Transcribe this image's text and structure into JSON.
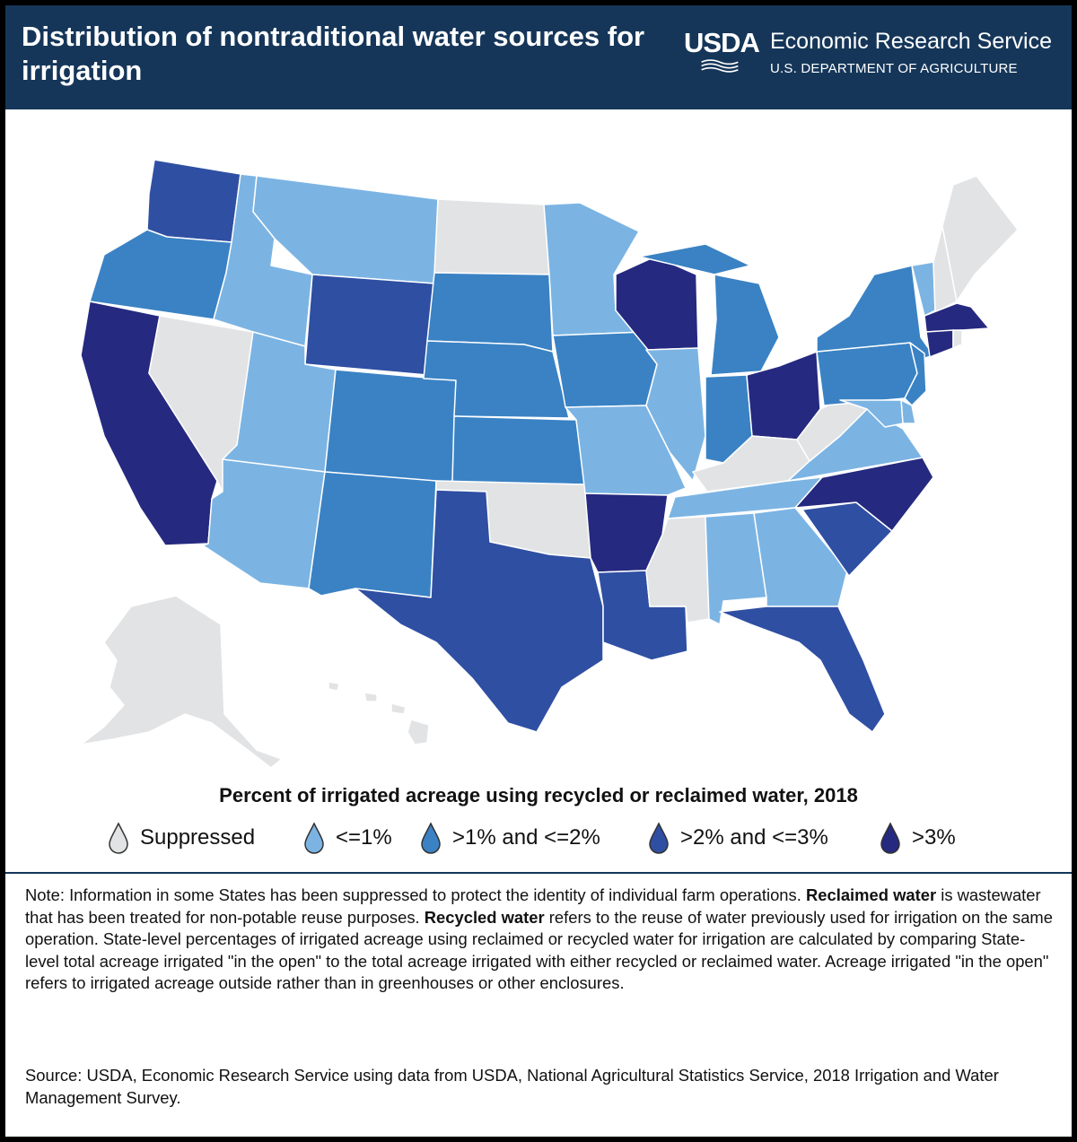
{
  "header": {
    "title": "Distribution of nontraditional water sources for irrigation",
    "logo_text": "USDA",
    "agency": "Economic Research Service",
    "department": "U.S. DEPARTMENT OF AGRICULTURE"
  },
  "colors": {
    "header_bg": "#153659",
    "suppressed": "#e2e3e4",
    "le1": "#7bb4e3",
    "gt1_le2": "#3a82c4",
    "gt2_le3": "#2f4fa3",
    "gt3": "#25297f"
  },
  "map": {
    "legend_title": "Percent of irrigated acreage using recycled or reclaimed water, 2018",
    "legend": [
      {
        "label": "Suppressed",
        "color": "#e2e3e4"
      },
      {
        "label": "<=1%",
        "color": "#7bb4e3"
      },
      {
        "label": ">1% and <=2%",
        "color": "#3a82c4"
      },
      {
        "label": ">2% and <=3%",
        "color": "#2f4fa3"
      },
      {
        "label": ">3%",
        "color": "#25297f"
      }
    ],
    "states": {
      "WA": "gt2_le3",
      "OR": "gt1_le2",
      "CA": "gt3",
      "NV": "suppressed",
      "ID": "le1",
      "MT": "le1",
      "WY": "gt2_le3",
      "UT": "le1",
      "AZ": "le1",
      "CO": "gt1_le2",
      "NM": "gt1_le2",
      "ND": "suppressed",
      "SD": "gt1_le2",
      "NE": "gt1_le2",
      "KS": "gt1_le2",
      "OK": "suppressed",
      "TX": "gt2_le3",
      "MN": "le1",
      "IA": "gt1_le2",
      "MO": "le1",
      "AR": "gt3",
      "LA": "gt2_le3",
      "WI": "gt3",
      "IL": "le1",
      "MI": "gt1_le2",
      "IN": "gt1_le2",
      "OH": "gt3",
      "KY": "suppressed",
      "TN": "le1",
      "MS": "suppressed",
      "AL": "le1",
      "GA": "le1",
      "FL": "gt2_le3",
      "SC": "gt2_le3",
      "NC": "gt3",
      "VA": "le1",
      "WV": "suppressed",
      "PA": "gt1_le2",
      "NY": "gt1_le2",
      "NJ": "gt1_le2",
      "DE": "le1",
      "MD": "le1",
      "VT": "le1",
      "NH": "suppressed",
      "ME": "suppressed",
      "MA": "gt3",
      "CT": "gt3",
      "RI": "suppressed",
      "AK": "suppressed",
      "HI": "suppressed"
    }
  },
  "note": {
    "prefix": "Note: Information in some States has been suppressed to protect the identity of individual farm operations. ",
    "term1": "Reclaimed water",
    "def1": " is wastewater that has been treated for non-potable reuse purposes. ",
    "term2": "Recycled water",
    "def2": " refers to the reuse of water previously used for irrigation on the same operation. State-level percentages of irrigated acreage using reclaimed or recycled water for irrigation are calculated by comparing State-level total acreage irrigated \"in the open\" to the total acreage irrigated with either recycled or reclaimed water. Acreage irrigated \"in the open\" refers to irrigated acreage outside rather than in greenhouses or other enclosures."
  },
  "source": "Source: USDA, Economic Research Service using data from USDA, National Agricultural Statistics Service, 2018 Irrigation and Water Management Survey."
}
